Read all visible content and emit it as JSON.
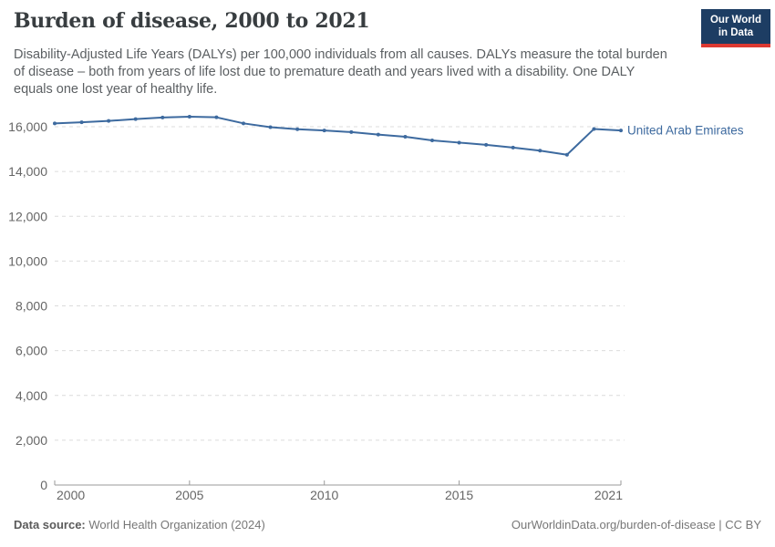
{
  "header": {
    "title": "Burden of disease, 2000 to 2021",
    "logo": {
      "line1": "Our World",
      "line2": "in Data",
      "bg_color": "#1d3d63",
      "stripe_color": "#dc3932"
    }
  },
  "subtitle": "Disability-Adjusted Life Years (DALYs) per 100,000 individuals from all causes. DALYs measure the total burden of disease – both from years of life lost due to premature death and years lived with a disability. One DALY equals one lost year of healthy life.",
  "chart_data": {
    "type": "line",
    "title": "Burden of disease, 2000 to 2021",
    "x": [
      2000,
      2001,
      2002,
      2003,
      2004,
      2005,
      2006,
      2007,
      2008,
      2009,
      2010,
      2011,
      2012,
      2013,
      2014,
      2015,
      2016,
      2017,
      2018,
      2019,
      2020,
      2021
    ],
    "series": [
      {
        "name": "United Arab Emirates",
        "color": "#3d6a9f",
        "values": [
          16150,
          16200,
          16260,
          16340,
          16410,
          16450,
          16420,
          16150,
          15980,
          15890,
          15830,
          15760,
          15650,
          15550,
          15390,
          15290,
          15190,
          15070,
          14930,
          14750,
          15900,
          15830
        ]
      }
    ],
    "xticks": [
      2000,
      2005,
      2010,
      2015,
      2021
    ],
    "yticks": [
      0,
      2000,
      4000,
      6000,
      8000,
      10000,
      12000,
      14000,
      16000
    ],
    "ylim": [
      0,
      16600
    ],
    "xlabel": "",
    "ylabel": "",
    "grid": "horizontal-dashed",
    "legend": "end-of-line-label",
    "axis_color": "#9a9a9a",
    "grid_color": "#dcdcdc",
    "tick_label_color": "#666666"
  },
  "footer": {
    "source_label": "Data source:",
    "source_value": "World Health Organization (2024)",
    "attribution": "OurWorldinData.org/burden-of-disease | CC BY"
  }
}
